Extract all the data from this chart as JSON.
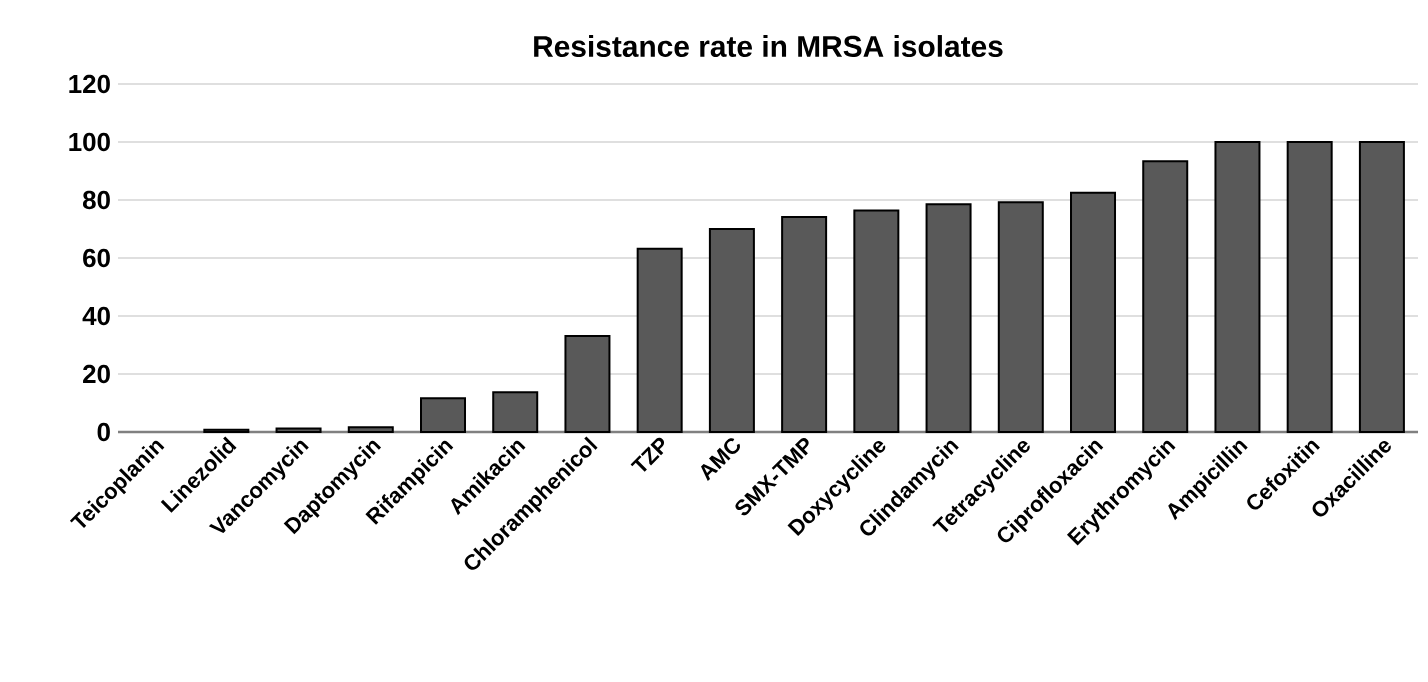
{
  "chart_data": {
    "type": "bar",
    "title": "Resistance rate in MRSA isolates",
    "categories": [
      "Teicoplanin",
      "Linezolid",
      "Vancomycin",
      "Daptomycin",
      "Rifampicin",
      "Amikacin",
      "Chloramphenicol",
      "TZP",
      "AMC",
      "SMX-TMP",
      "Doxycycline",
      "Clindamycin",
      "Tetracycline",
      "Ciprofloxacin",
      "Erythromycin",
      "Ampicillin",
      "Cefoxitin",
      "Oxacilline"
    ],
    "values": [
      0,
      0.8,
      1.2,
      1.6,
      11.6,
      13.7,
      33.1,
      63.2,
      70,
      74.1,
      76.4,
      78.5,
      79.2,
      82.5,
      93.4,
      100,
      100,
      100
    ],
    "color": "#595959",
    "ylim": [
      0,
      120
    ],
    "yticks": [
      0,
      20,
      40,
      60,
      80,
      100,
      120
    ],
    "grid": "y"
  }
}
